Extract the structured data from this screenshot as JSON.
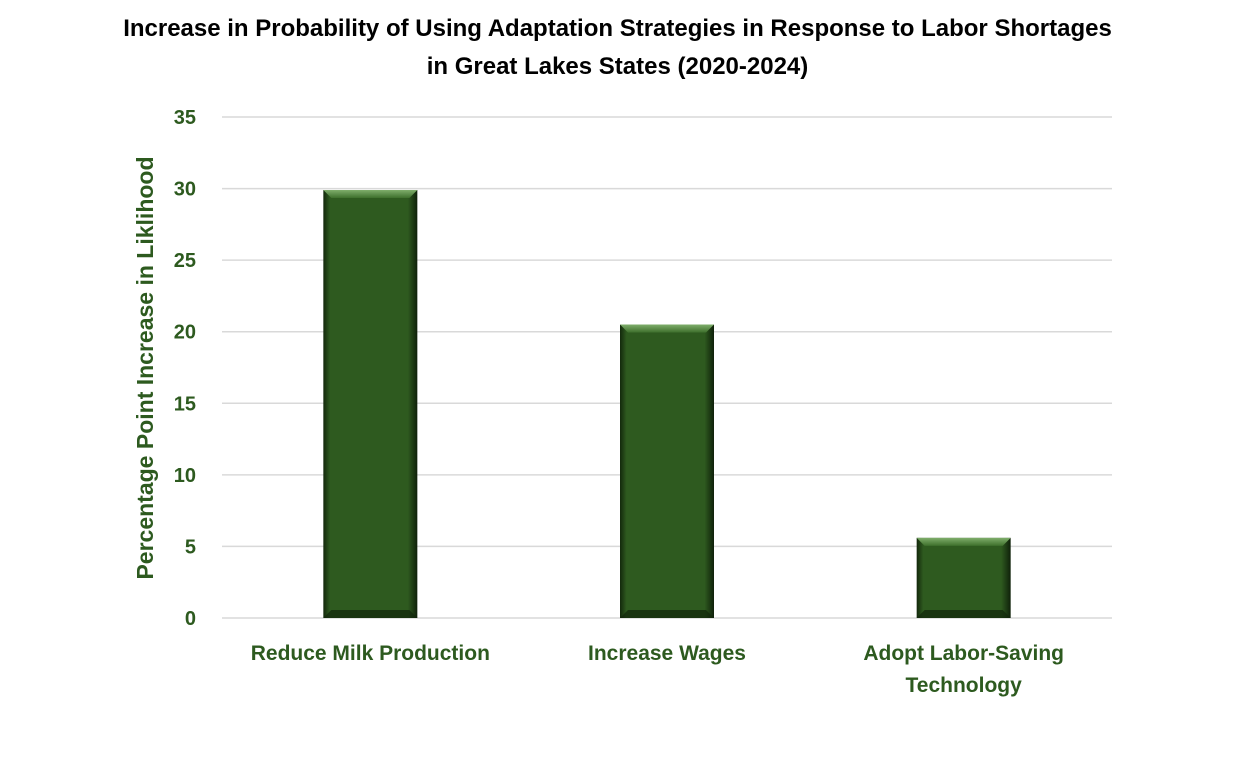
{
  "chart_data": {
    "type": "bar",
    "title": "Increase in Probability of Using Adaptation Strategies in Response to Labor Shortages\nin Great Lakes States (2020-2024)",
    "xlabel": "",
    "ylabel": "Percentage Point Increase in Liklihood",
    "categories": [
      "Reduce Milk Production",
      "Increase Wages",
      "Adopt Labor-Saving\nTechnology"
    ],
    "values": [
      29.9,
      20.5,
      5.6
    ],
    "ylim": [
      0,
      35
    ],
    "yticks": [
      0,
      5,
      10,
      15,
      20,
      25,
      30,
      35
    ],
    "grid": true,
    "legend": "none",
    "colors": {
      "bar": "#2e5a1f",
      "bar_dark": "#13280c",
      "bar_light": "#5b8c48",
      "label": "#2d5a1f",
      "grid": "#d9d9d9"
    }
  }
}
